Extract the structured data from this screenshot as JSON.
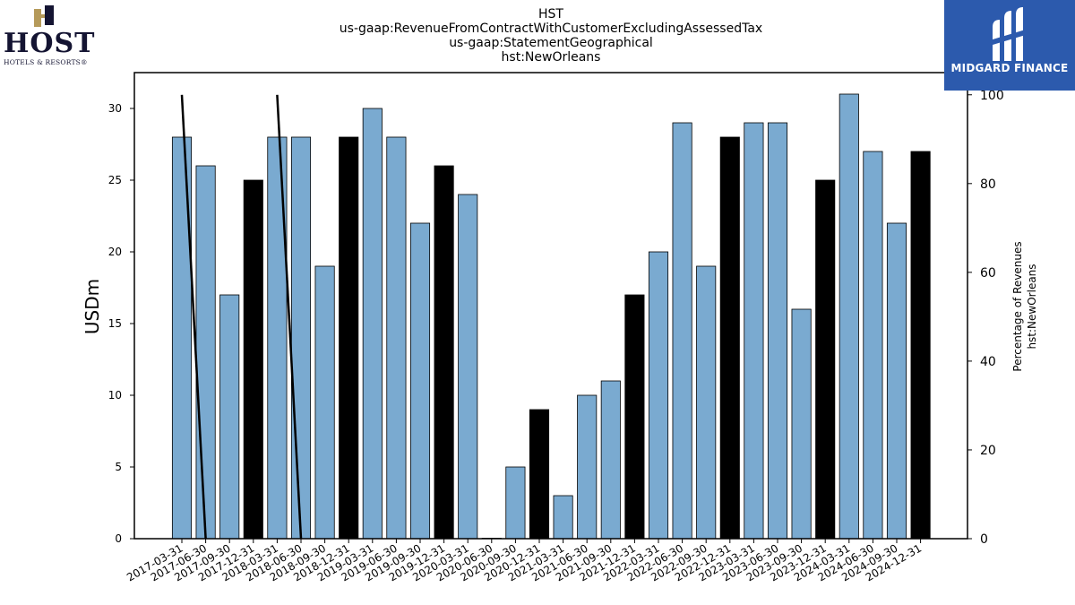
{
  "title": {
    "lines": [
      "HST",
      "us-gaap:RevenueFromContractWithCustomerExcludingAssessedTax",
      "us-gaap:StatementGeographical",
      "hst:NewOrleans"
    ]
  },
  "logos": {
    "host": {
      "word": "HOST",
      "sub": "HOTELS & RESORTS®"
    },
    "midgard": {
      "text": "MIDGARD FINANCE",
      "bg_color": "#2c5aad"
    }
  },
  "chart_data": {
    "type": "bar",
    "categories": [
      "2017-03-31",
      "2017-06-30",
      "2017-09-30",
      "2017-12-31",
      "2018-03-31",
      "2018-06-30",
      "2018-09-30",
      "2018-12-31",
      "2019-03-31",
      "2019-06-30",
      "2019-09-30",
      "2019-12-31",
      "2020-03-31",
      "2020-06-30",
      "2020-09-30",
      "2020-12-31",
      "2021-03-31",
      "2021-06-30",
      "2021-09-30",
      "2021-12-31",
      "2022-03-31",
      "2022-06-30",
      "2022-09-30",
      "2022-12-31",
      "2023-03-31",
      "2023-06-30",
      "2023-09-30",
      "2023-12-31",
      "2024-03-31",
      "2024-06-30",
      "2024-09-30",
      "2024-12-31"
    ],
    "series": [
      {
        "axis": "left",
        "values": [
          28,
          26,
          17,
          25,
          28,
          28,
          19,
          28,
          30,
          28,
          22,
          26,
          24,
          0,
          5,
          9,
          3,
          10,
          11,
          17,
          20,
          29,
          19,
          28,
          29,
          29,
          16,
          25,
          31,
          27,
          22,
          27
        ],
        "colors": {
          "quarter": "#7aaad0",
          "year_end": "#000000"
        }
      },
      {
        "type": "line",
        "axis": "right",
        "values": [
          100,
          0,
          null,
          null,
          100,
          0,
          null,
          null,
          null,
          null,
          null,
          null,
          null,
          null,
          null,
          null,
          null,
          null,
          null,
          null,
          null,
          null,
          null,
          null,
          null,
          null,
          null,
          null,
          null,
          null,
          null,
          null
        ],
        "color": "#000000"
      }
    ],
    "ylabel": "USDm",
    "ylabel_right": [
      "Percentage of Revenues",
      "hst:NewOrleans"
    ],
    "ylim": [
      0,
      32.5
    ],
    "ylim_right": [
      0,
      105
    ],
    "yticks": [
      0,
      5,
      10,
      15,
      20,
      25,
      30
    ],
    "yticks_right": [
      0,
      20,
      40,
      60,
      80,
      100
    ],
    "grid": false
  }
}
